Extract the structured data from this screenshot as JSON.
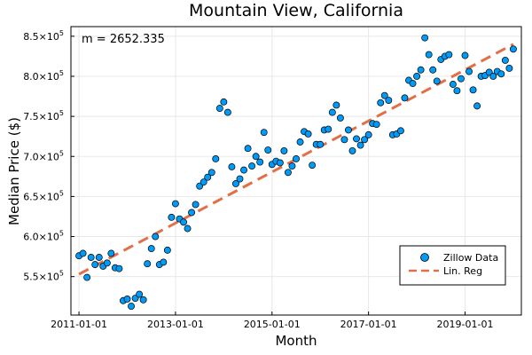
{
  "chart_data": {
    "type": "scatter",
    "title": "Mountain View, California",
    "xlabel": "Month",
    "ylabel": "Median Price ($)",
    "annotation": "m = 2652.335",
    "x_axis": {
      "range": [
        "2010-11-01",
        "2020-03-01"
      ],
      "ticks": [
        "2011-01-01",
        "2013-01-01",
        "2015-01-01",
        "2017-01-01",
        "2019-01-01"
      ]
    },
    "y_axis": {
      "range": [
        502000,
        862000
      ],
      "ticks": [
        {
          "value": 550000,
          "label": "5.5×10",
          "exp": "5"
        },
        {
          "value": 600000,
          "label": "6.0×10",
          "exp": "5"
        },
        {
          "value": 650000,
          "label": "6.5×10",
          "exp": "5"
        },
        {
          "value": 700000,
          "label": "7.0×10",
          "exp": "5"
        },
        {
          "value": 750000,
          "label": "7.5×10",
          "exp": "5"
        },
        {
          "value": 800000,
          "label": "8.0×10",
          "exp": "5"
        },
        {
          "value": 850000,
          "label": "8.5×10",
          "exp": "5"
        }
      ]
    },
    "grid": true,
    "legend_position": "bottom-right",
    "series": [
      {
        "name": "Zillow Data",
        "kind": "scatter",
        "color": "#009af9",
        "points": [
          [
            "2011-01",
            576000
          ],
          [
            "2011-02",
            579000
          ],
          [
            "2011-03",
            549000
          ],
          [
            "2011-04",
            574000
          ],
          [
            "2011-05",
            565000
          ],
          [
            "2011-06",
            574000
          ],
          [
            "2011-07",
            563000
          ],
          [
            "2011-08",
            567000
          ],
          [
            "2011-09",
            579000
          ],
          [
            "2011-10",
            561000
          ],
          [
            "2011-11",
            560000
          ],
          [
            "2011-12",
            520000
          ],
          [
            "2012-01",
            522000
          ],
          [
            "2012-02",
            513000
          ],
          [
            "2012-03",
            523000
          ],
          [
            "2012-04",
            528000
          ],
          [
            "2012-05",
            521000
          ],
          [
            "2012-06",
            566000
          ],
          [
            "2012-07",
            585000
          ],
          [
            "2012-08",
            600000
          ],
          [
            "2012-09",
            565000
          ],
          [
            "2012-10",
            568000
          ],
          [
            "2012-11",
            583000
          ],
          [
            "2012-12",
            624000
          ],
          [
            "2013-01",
            641000
          ],
          [
            "2013-02",
            622000
          ],
          [
            "2013-03",
            618000
          ],
          [
            "2013-04",
            610000
          ],
          [
            "2013-05",
            630000
          ],
          [
            "2013-06",
            640000
          ],
          [
            "2013-07",
            663000
          ],
          [
            "2013-08",
            668000
          ],
          [
            "2013-09",
            674000
          ],
          [
            "2013-10",
            680000
          ],
          [
            "2013-11",
            697000
          ],
          [
            "2013-12",
            760000
          ],
          [
            "2014-01",
            768000
          ],
          [
            "2014-02",
            755000
          ],
          [
            "2014-03",
            687000
          ],
          [
            "2014-04",
            666000
          ],
          [
            "2014-05",
            672000
          ],
          [
            "2014-06",
            683000
          ],
          [
            "2014-07",
            710000
          ],
          [
            "2014-08",
            688000
          ],
          [
            "2014-09",
            700000
          ],
          [
            "2014-10",
            693000
          ],
          [
            "2014-11",
            730000
          ],
          [
            "2014-12",
            708000
          ],
          [
            "2015-01",
            690000
          ],
          [
            "2015-02",
            694000
          ],
          [
            "2015-03",
            692000
          ],
          [
            "2015-04",
            707000
          ],
          [
            "2015-05",
            680000
          ],
          [
            "2015-06",
            688000
          ],
          [
            "2015-07",
            697000
          ],
          [
            "2015-08",
            718000
          ],
          [
            "2015-09",
            731000
          ],
          [
            "2015-10",
            728000
          ],
          [
            "2015-11",
            689000
          ],
          [
            "2015-12",
            715000
          ],
          [
            "2016-01",
            715000
          ],
          [
            "2016-02",
            733000
          ],
          [
            "2016-03",
            734000
          ],
          [
            "2016-04",
            755000
          ],
          [
            "2016-05",
            764000
          ],
          [
            "2016-06",
            748000
          ],
          [
            "2016-07",
            721000
          ],
          [
            "2016-08",
            733000
          ],
          [
            "2016-09",
            707000
          ],
          [
            "2016-10",
            722000
          ],
          [
            "2016-11",
            714000
          ],
          [
            "2016-12",
            721000
          ],
          [
            "2017-01",
            727000
          ],
          [
            "2017-02",
            741000
          ],
          [
            "2017-03",
            740000
          ],
          [
            "2017-04",
            767000
          ],
          [
            "2017-05",
            776000
          ],
          [
            "2017-06",
            770000
          ],
          [
            "2017-07",
            727000
          ],
          [
            "2017-08",
            728000
          ],
          [
            "2017-09",
            732000
          ],
          [
            "2017-10",
            773000
          ],
          [
            "2017-11",
            795000
          ],
          [
            "2017-12",
            791000
          ],
          [
            "2018-01",
            800000
          ],
          [
            "2018-02",
            808000
          ],
          [
            "2018-03",
            848000
          ],
          [
            "2018-04",
            827000
          ],
          [
            "2018-05",
            808000
          ],
          [
            "2018-06",
            794000
          ],
          [
            "2018-07",
            821000
          ],
          [
            "2018-08",
            825000
          ],
          [
            "2018-09",
            827000
          ],
          [
            "2018-10",
            790000
          ],
          [
            "2018-11",
            782000
          ],
          [
            "2018-12",
            797000
          ],
          [
            "2019-01",
            826000
          ],
          [
            "2019-02",
            806000
          ],
          [
            "2019-03",
            783000
          ],
          [
            "2019-04",
            763000
          ],
          [
            "2019-05",
            800000
          ],
          [
            "2019-06",
            801000
          ],
          [
            "2019-07",
            805000
          ],
          [
            "2019-08",
            800000
          ],
          [
            "2019-09",
            806000
          ],
          [
            "2019-10",
            803000
          ],
          [
            "2019-11",
            820000
          ],
          [
            "2019-12",
            810000
          ],
          [
            "2020-01",
            834000
          ]
        ]
      },
      {
        "name": "Lin. Reg",
        "kind": "line",
        "color": "#e26f46",
        "style": "dashed",
        "slope_per_month": 2652.335,
        "points": [
          [
            "2011-01",
            553000
          ],
          [
            "2020-01",
            840000
          ]
        ]
      }
    ]
  }
}
